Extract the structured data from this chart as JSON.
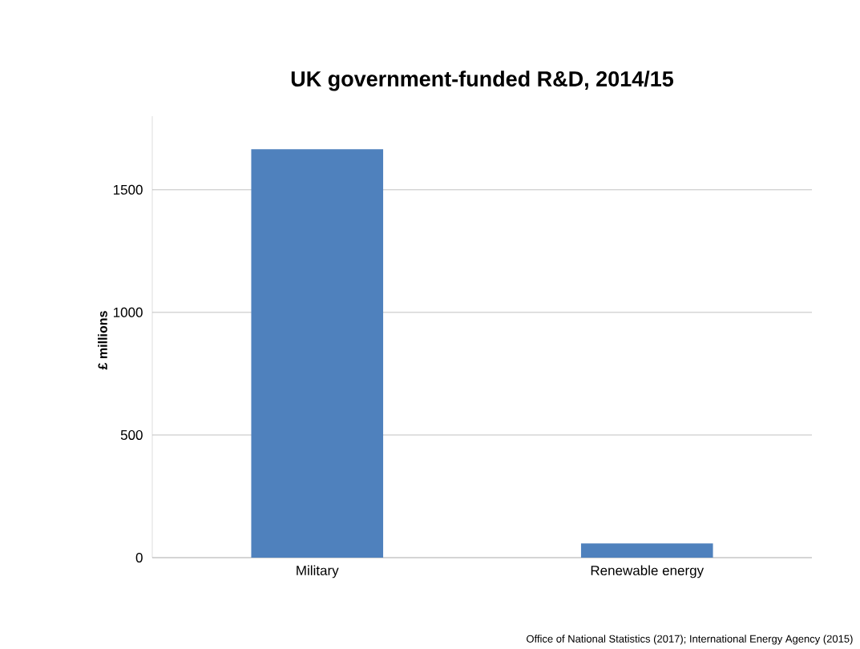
{
  "chart_data": {
    "type": "bar",
    "title": "UK government-funded R&D, 2014/15",
    "ylabel": "£ millions",
    "categories": [
      "Military",
      "Renewable energy"
    ],
    "values": [
      1665,
      58
    ],
    "color": "#4f81bd",
    "ylim": [
      0,
      1800
    ],
    "yticks": [
      0,
      500,
      1000,
      1500
    ],
    "grid": "y",
    "annotations": [
      "Office of National Statistics (2017); International Energy Agency (2015)"
    ]
  }
}
